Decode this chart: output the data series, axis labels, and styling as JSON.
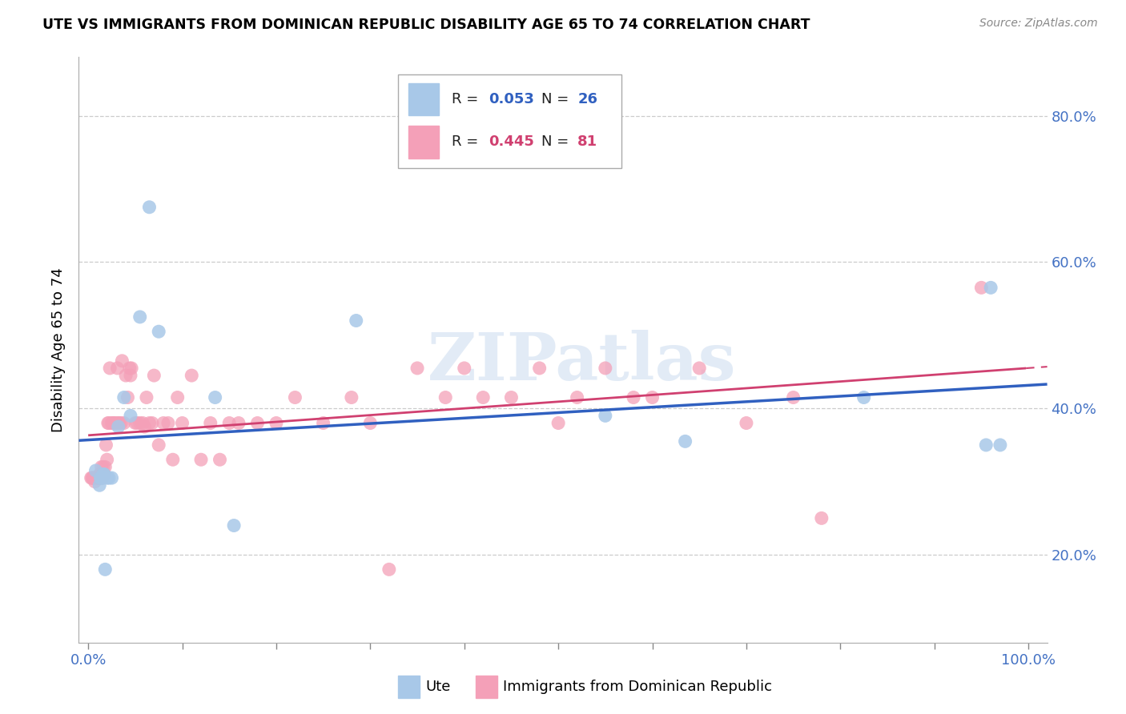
{
  "title": "UTE VS IMMIGRANTS FROM DOMINICAN REPUBLIC DISABILITY AGE 65 TO 74 CORRELATION CHART",
  "source": "Source: ZipAtlas.com",
  "ylabel": "Disability Age 65 to 74",
  "xlim": [
    -0.01,
    1.02
  ],
  "ylim": [
    0.08,
    0.88
  ],
  "ytick_positions": [
    0.2,
    0.4,
    0.6,
    0.8
  ],
  "ytick_labels": [
    "20.0%",
    "40.0%",
    "60.0%",
    "80.0%"
  ],
  "xtick_positions": [
    0.0,
    0.1,
    0.2,
    0.3,
    0.4,
    0.5,
    0.6,
    0.7,
    0.8,
    0.9,
    1.0
  ],
  "xtick_labels": [
    "0.0%",
    "",
    "",
    "",
    "",
    "",
    "",
    "",
    "",
    "",
    "100.0%"
  ],
  "ute_R": "0.053",
  "ute_N": "26",
  "dom_R": "0.445",
  "dom_N": "81",
  "ute_color": "#a8c8e8",
  "dom_color": "#f4a0b8",
  "ute_line_color": "#3060c0",
  "dom_line_color": "#d04070",
  "watermark": "ZIPatlas",
  "legend_label_ute": "Ute",
  "legend_label_dom": "Immigrants from Dominican Republic",
  "ute_x": [
    0.008,
    0.012,
    0.013,
    0.014,
    0.015,
    0.016,
    0.017,
    0.018,
    0.02,
    0.022,
    0.025,
    0.032,
    0.038,
    0.045,
    0.055,
    0.065,
    0.075,
    0.135,
    0.155,
    0.285,
    0.55,
    0.635,
    0.825,
    0.955,
    0.96,
    0.97
  ],
  "ute_y": [
    0.315,
    0.295,
    0.305,
    0.305,
    0.305,
    0.31,
    0.31,
    0.18,
    0.305,
    0.305,
    0.305,
    0.375,
    0.415,
    0.39,
    0.525,
    0.675,
    0.505,
    0.415,
    0.24,
    0.52,
    0.39,
    0.355,
    0.415,
    0.35,
    0.565,
    0.35
  ],
  "dom_x": [
    0.003,
    0.004,
    0.005,
    0.006,
    0.007,
    0.008,
    0.009,
    0.01,
    0.011,
    0.012,
    0.013,
    0.014,
    0.015,
    0.016,
    0.017,
    0.018,
    0.019,
    0.02,
    0.021,
    0.022,
    0.023,
    0.025,
    0.026,
    0.027,
    0.028,
    0.03,
    0.031,
    0.032,
    0.033,
    0.035,
    0.036,
    0.038,
    0.04,
    0.042,
    0.044,
    0.045,
    0.046,
    0.05,
    0.052,
    0.055,
    0.058,
    0.06,
    0.062,
    0.065,
    0.068,
    0.07,
    0.075,
    0.08,
    0.085,
    0.09,
    0.095,
    0.1,
    0.11,
    0.12,
    0.13,
    0.14,
    0.15,
    0.16,
    0.18,
    0.2,
    0.22,
    0.25,
    0.28,
    0.3,
    0.32,
    0.35,
    0.38,
    0.4,
    0.42,
    0.45,
    0.48,
    0.5,
    0.52,
    0.55,
    0.58,
    0.6,
    0.65,
    0.7,
    0.75,
    0.78,
    0.95
  ],
  "dom_y": [
    0.305,
    0.305,
    0.305,
    0.305,
    0.3,
    0.305,
    0.305,
    0.305,
    0.305,
    0.31,
    0.31,
    0.32,
    0.305,
    0.32,
    0.31,
    0.32,
    0.35,
    0.33,
    0.38,
    0.38,
    0.455,
    0.38,
    0.38,
    0.38,
    0.38,
    0.38,
    0.455,
    0.38,
    0.38,
    0.38,
    0.465,
    0.38,
    0.445,
    0.415,
    0.455,
    0.445,
    0.455,
    0.38,
    0.38,
    0.38,
    0.38,
    0.375,
    0.415,
    0.38,
    0.38,
    0.445,
    0.35,
    0.38,
    0.38,
    0.33,
    0.415,
    0.38,
    0.445,
    0.33,
    0.38,
    0.33,
    0.38,
    0.38,
    0.38,
    0.38,
    0.415,
    0.38,
    0.415,
    0.38,
    0.18,
    0.455,
    0.415,
    0.455,
    0.415,
    0.415,
    0.455,
    0.38,
    0.415,
    0.455,
    0.415,
    0.415,
    0.455,
    0.38,
    0.415,
    0.25,
    0.565
  ]
}
